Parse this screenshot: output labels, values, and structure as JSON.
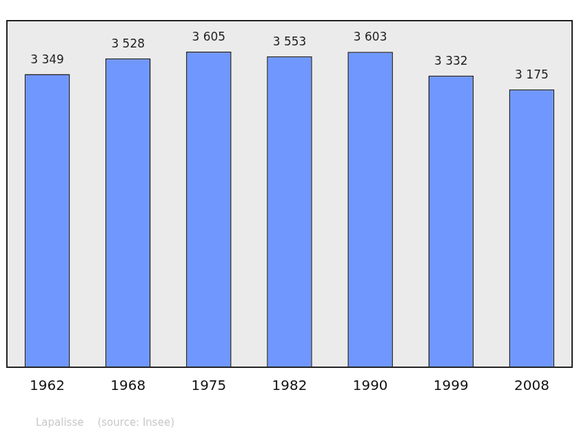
{
  "chart_data": {
    "type": "bar",
    "categories": [
      "1962",
      "1968",
      "1975",
      "1982",
      "1990",
      "1999",
      "2008"
    ],
    "values": [
      3349,
      3528,
      3605,
      3553,
      3603,
      3332,
      3175
    ],
    "value_labels": [
      "3 349",
      "3 528",
      "3 605",
      "3 553",
      "3 603",
      "3 332",
      "3 175"
    ],
    "data_labels": true,
    "color": "#7097fd",
    "ylim": [
      0,
      3960
    ],
    "grid": false,
    "tick_labels": "x",
    "annotations": [
      "Lapalisse",
      "(source: Insee)"
    ]
  }
}
